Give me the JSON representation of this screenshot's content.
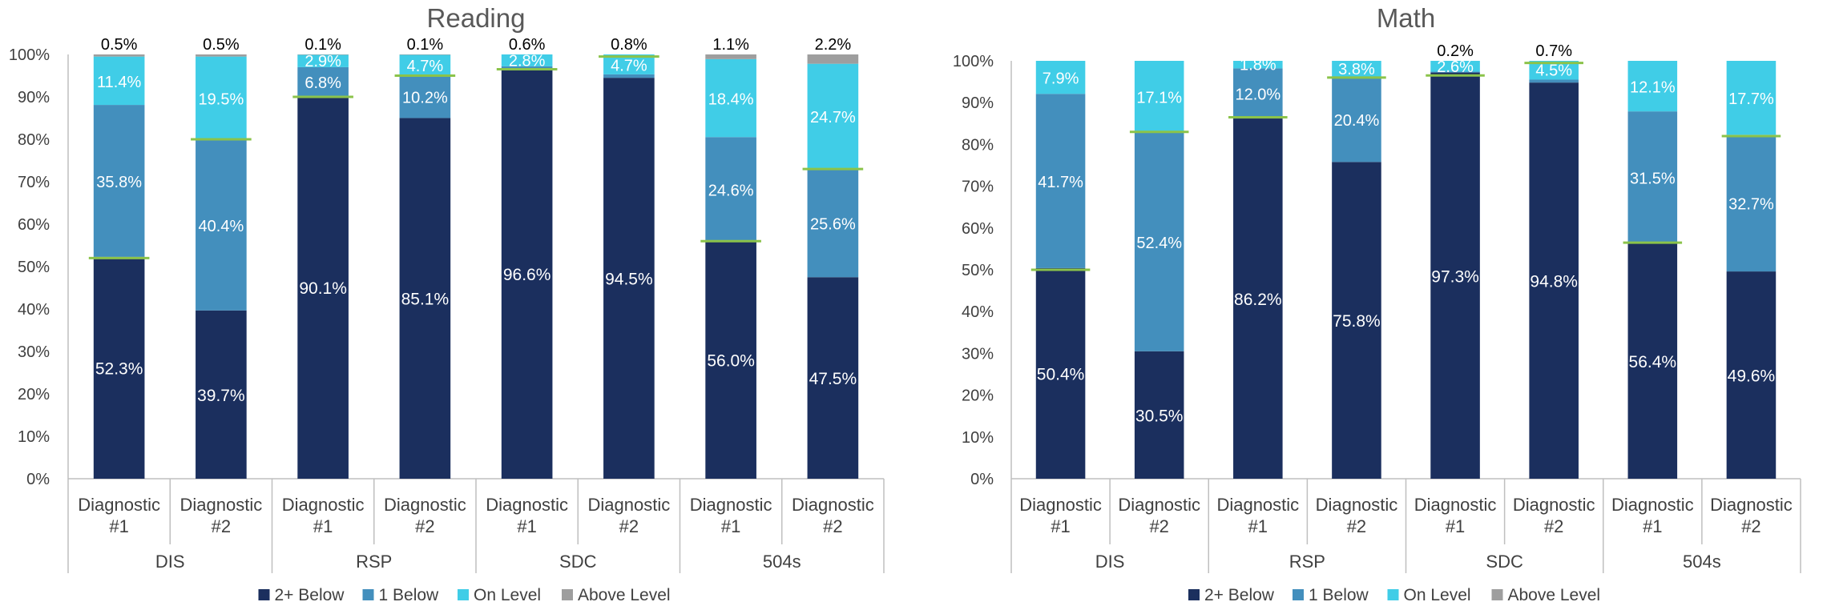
{
  "colors": {
    "two_below": "#1b2f5e",
    "one_below": "#438fbd",
    "on_level": "#40cde7",
    "above_level": "#9e9e9e",
    "marker": "#8bc34a",
    "axis": "#bfbfbf",
    "text": "#404040"
  },
  "chart_data": [
    {
      "type": "bar",
      "stacked": true,
      "title": "Reading",
      "ylim": [
        0,
        100
      ],
      "y_ticks": [
        "0%",
        "10%",
        "20%",
        "30%",
        "40%",
        "50%",
        "60%",
        "70%",
        "80%",
        "90%",
        "100%"
      ],
      "groups": [
        "DIS",
        "RSP",
        "SDC",
        "504s"
      ],
      "categories": [
        {
          "line1": "Diagnostic",
          "line2": "#1"
        },
        {
          "line1": "Diagnostic",
          "line2": "#2"
        },
        {
          "line1": "Diagnostic",
          "line2": "#1"
        },
        {
          "line1": "Diagnostic",
          "line2": "#2"
        },
        {
          "line1": "Diagnostic",
          "line2": "#1"
        },
        {
          "line1": "Diagnostic",
          "line2": "#2"
        },
        {
          "line1": "Diagnostic",
          "line2": "#1"
        },
        {
          "line1": "Diagnostic",
          "line2": "#2"
        }
      ],
      "series": [
        {
          "name": "2+ Below",
          "color_key": "two_below",
          "values": [
            52.3,
            39.7,
            90.1,
            85.1,
            96.6,
            94.5,
            56.0,
            47.5
          ],
          "labels": [
            "52.3%",
            "39.7%",
            "90.1%",
            "85.1%",
            "96.6%",
            "94.5%",
            "56.0%",
            "47.5%"
          ]
        },
        {
          "name": "1 Below",
          "color_key": "one_below",
          "values": [
            35.8,
            40.4,
            6.8,
            10.2,
            0.6,
            0.8,
            24.6,
            25.6
          ],
          "labels": [
            "35.8%",
            "40.4%",
            "6.8%",
            "10.2%",
            "0.6%",
            "0.8%",
            "24.6%",
            "25.6%"
          ]
        },
        {
          "name": "On Level",
          "color_key": "on_level",
          "values": [
            11.4,
            19.5,
            2.9,
            4.7,
            2.8,
            4.7,
            18.4,
            24.7
          ],
          "labels": [
            "11.4%",
            "19.5%",
            "2.9%",
            "4.7%",
            "2.8%",
            "4.7%",
            "18.4%",
            "24.7%"
          ]
        },
        {
          "name": "Above Level",
          "color_key": "above_level",
          "values": [
            0.5,
            0.5,
            0.1,
            0.1,
            0.0,
            0.0,
            1.1,
            2.2
          ],
          "labels": [
            "0.5%",
            "0.5%",
            "0.1%",
            "0.1%",
            "",
            "",
            "1.1%",
            "2.2%"
          ]
        }
      ],
      "markers": [
        52,
        80,
        90,
        95,
        96.5,
        99.5,
        56,
        73
      ]
    },
    {
      "type": "bar",
      "stacked": true,
      "title": "Math",
      "ylim": [
        0,
        100
      ],
      "y_ticks": [
        "0%",
        "10%",
        "20%",
        "30%",
        "40%",
        "50%",
        "60%",
        "70%",
        "80%",
        "90%",
        "100%"
      ],
      "groups": [
        "DIS",
        "RSP",
        "SDC",
        "504s"
      ],
      "categories": [
        {
          "line1": "Diagnostic",
          "line2": "#1"
        },
        {
          "line1": "Diagnostic",
          "line2": "#2"
        },
        {
          "line1": "Diagnostic",
          "line2": "#1"
        },
        {
          "line1": "Diagnostic",
          "line2": "#2"
        },
        {
          "line1": "Diagnostic",
          "line2": "#1"
        },
        {
          "line1": "Diagnostic",
          "line2": "#2"
        },
        {
          "line1": "Diagnostic",
          "line2": "#1"
        },
        {
          "line1": "Diagnostic",
          "line2": "#2"
        }
      ],
      "series": [
        {
          "name": "2+ Below",
          "color_key": "two_below",
          "values": [
            50.4,
            30.5,
            86.2,
            75.8,
            97.3,
            94.8,
            56.4,
            49.6
          ],
          "labels": [
            "50.4%",
            "30.5%",
            "86.2%",
            "75.8%",
            "97.3%",
            "94.8%",
            "56.4%",
            "49.6%"
          ]
        },
        {
          "name": "1 Below",
          "color_key": "one_below",
          "values": [
            41.7,
            52.4,
            12.0,
            20.4,
            0.2,
            0.7,
            31.5,
            32.7
          ],
          "labels": [
            "41.7%",
            "52.4%",
            "12.0%",
            "20.4%",
            "0.2%",
            "0.7%",
            "31.5%",
            "32.7%"
          ]
        },
        {
          "name": "On Level",
          "color_key": "on_level",
          "values": [
            7.9,
            17.1,
            1.8,
            3.8,
            2.6,
            4.5,
            12.1,
            17.7
          ],
          "labels": [
            "7.9%",
            "17.1%",
            "1.8%",
            "3.8%",
            "2.6%",
            "4.5%",
            "12.1%",
            "17.7%"
          ]
        },
        {
          "name": "Above Level",
          "color_key": "above_level",
          "values": [
            0,
            0,
            0,
            0,
            0,
            0,
            0,
            0
          ],
          "labels": [
            "",
            "",
            "",
            "",
            "",
            "",
            "",
            ""
          ]
        }
      ],
      "markers": [
        50,
        83,
        86.5,
        96,
        96.5,
        99.5,
        56.5,
        82
      ]
    }
  ],
  "legend": [
    {
      "label": "2+ Below",
      "color_key": "two_below"
    },
    {
      "label": "1 Below",
      "color_key": "one_below"
    },
    {
      "label": "On Level",
      "color_key": "on_level"
    },
    {
      "label": "Above Level",
      "color_key": "above_level"
    }
  ]
}
